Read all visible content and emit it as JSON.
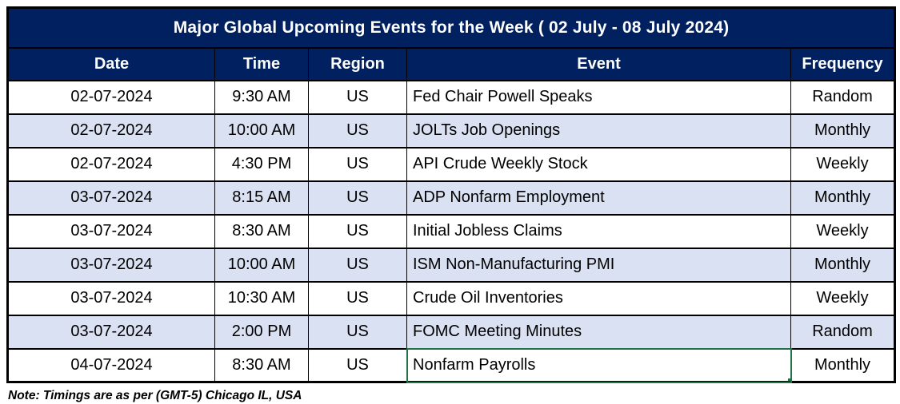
{
  "chart_data": {
    "type": "table",
    "title": "Major Global Upcoming Events for the Week ( 02 July -  08 July 2024)",
    "columns": [
      "Date",
      "Time",
      "Region",
      "Event",
      "Frequency"
    ],
    "rows": [
      [
        "02-07-2024",
        "9:30 AM",
        "US",
        "Fed Chair Powell Speaks",
        "Random"
      ],
      [
        "02-07-2024",
        "10:00 AM",
        "US",
        "JOLTs Job Openings",
        "Monthly"
      ],
      [
        "02-07-2024",
        "4:30 PM",
        "US",
        "API Crude Weekly Stock",
        "Weekly"
      ],
      [
        "03-07-2024",
        "8:15 AM",
        "US",
        "ADP Nonfarm Employment",
        "Monthly"
      ],
      [
        "03-07-2024",
        "8:30 AM",
        "US",
        "Initial Jobless Claims",
        "Weekly"
      ],
      [
        "03-07-2024",
        "10:00 AM",
        "US",
        "ISM Non-Manufacturing PMI",
        "Monthly"
      ],
      [
        "03-07-2024",
        "10:30 AM",
        "US",
        "Crude Oil Inventories",
        "Weekly"
      ],
      [
        "03-07-2024",
        "2:00 PM",
        "US",
        "FOMC Meeting Minutes",
        "Random"
      ],
      [
        "04-07-2024",
        "8:30 AM",
        "US",
        "Nonfarm Payrolls",
        "Monthly"
      ]
    ],
    "layout_hints": {
      "grid": true,
      "alternating_row_shading": "every second data row shaded",
      "event_column_align": "left",
      "other_columns_align": "center"
    }
  },
  "selection": {
    "row_index": 8,
    "col_index": 3,
    "selected_cell_value": "Nonfarm Payrolls"
  },
  "footer": {
    "note": "Note: Timings are as per (GMT-5) Chicago IL, USA"
  },
  "colors": {
    "header_bg": "#002060",
    "header_text": "#ffffff",
    "row_bg": "#ffffff",
    "row_alt_bg": "#D9E1F2",
    "grid_border": "#000000",
    "selection_border": "#217346",
    "body_text": "#000000"
  }
}
